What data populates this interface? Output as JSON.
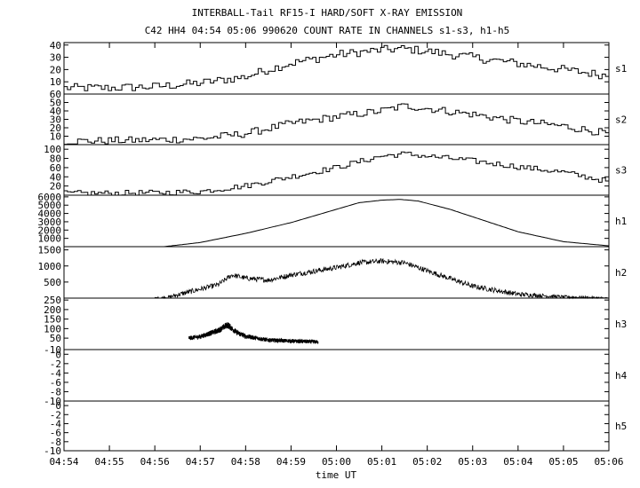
{
  "header": {
    "title": "INTERBALL-Tail RF15-I HARD/SOFT X-RAY EMISSION",
    "subtitle": "C42 HH4 04:54 05:06 990620  COUNT RATE IN CHANNELS s1-s3, h1-h5"
  },
  "chart_data": {
    "type": "line",
    "xlabel": "time UT",
    "x_ticks": [
      "04:54",
      "04:55",
      "04:56",
      "04:57",
      "04:58",
      "04:59",
      "05:00",
      "05:01",
      "05:02",
      "05:03",
      "05:04",
      "05:05",
      "05:06"
    ],
    "x_range_minutes": [
      0,
      12
    ],
    "x_start_time": "04:54",
    "panels": [
      {
        "name": "s1",
        "ylim": [
          0,
          42
        ],
        "yticks": [
          10,
          20,
          30,
          40
        ],
        "style": "step",
        "profile": [
          [
            0,
            5
          ],
          [
            1,
            5
          ],
          [
            2,
            6
          ],
          [
            3,
            9
          ],
          [
            4,
            14
          ],
          [
            4.5,
            20
          ],
          [
            5,
            25
          ],
          [
            6,
            32
          ],
          [
            7,
            36
          ],
          [
            7.5,
            37
          ],
          [
            8,
            35
          ],
          [
            9,
            30
          ],
          [
            10,
            25
          ],
          [
            11,
            20
          ],
          [
            12,
            15
          ]
        ],
        "noise": 3.5
      },
      {
        "name": "s2",
        "ylim": [
          0,
          60
        ],
        "yticks": [
          10,
          20,
          30,
          40,
          50,
          60
        ],
        "style": "step",
        "profile": [
          [
            0,
            4
          ],
          [
            1.5,
            5
          ],
          [
            3,
            7
          ],
          [
            3.5,
            10
          ],
          [
            4,
            13
          ],
          [
            5,
            25
          ],
          [
            6,
            33
          ],
          [
            7,
            40
          ],
          [
            7.5,
            46
          ],
          [
            8,
            43
          ],
          [
            9,
            36
          ],
          [
            10,
            28
          ],
          [
            11,
            22
          ],
          [
            12,
            13
          ]
        ],
        "noise": 4.5
      },
      {
        "name": "s3",
        "ylim": [
          0,
          110
        ],
        "yticks": [
          20,
          40,
          60,
          80,
          100
        ],
        "style": "step",
        "profile": [
          [
            0,
            4
          ],
          [
            2,
            5
          ],
          [
            3,
            8
          ],
          [
            4,
            20
          ],
          [
            5,
            40
          ],
          [
            6,
            60
          ],
          [
            7,
            85
          ],
          [
            7.5,
            90
          ],
          [
            8,
            85
          ],
          [
            9,
            75
          ],
          [
            10,
            62
          ],
          [
            11,
            50
          ],
          [
            12,
            30
          ]
        ],
        "noise": 6
      },
      {
        "name": "h1",
        "ylim": [
          0,
          6200
        ],
        "yticks": [
          1000,
          2000,
          3000,
          4000,
          5000,
          6000
        ],
        "style": "smooth",
        "profile": [
          [
            0,
            0
          ],
          [
            2.2,
            0
          ],
          [
            3,
            500
          ],
          [
            4,
            1600
          ],
          [
            5,
            2900
          ],
          [
            6,
            4500
          ],
          [
            6.5,
            5300
          ],
          [
            7,
            5600
          ],
          [
            7.4,
            5700
          ],
          [
            7.8,
            5500
          ],
          [
            8.5,
            4500
          ],
          [
            9,
            3600
          ],
          [
            10,
            1800
          ],
          [
            11,
            600
          ],
          [
            12,
            100
          ]
        ],
        "noise": 0
      },
      {
        "name": "h2",
        "ylim": [
          0,
          1600
        ],
        "yticks": [
          500,
          1000,
          1500
        ],
        "style": "noisy",
        "profile": [
          [
            0,
            0
          ],
          [
            2,
            0
          ],
          [
            2.3,
            30
          ],
          [
            3,
            280
          ],
          [
            3.4,
            420
          ],
          [
            3.7,
            720
          ],
          [
            4,
            620
          ],
          [
            4.5,
            560
          ],
          [
            5,
            720
          ],
          [
            6,
            950
          ],
          [
            6.5,
            1100
          ],
          [
            7,
            1150
          ],
          [
            7.5,
            1100
          ],
          [
            8,
            850
          ],
          [
            9,
            370
          ],
          [
            10,
            120
          ],
          [
            11,
            40
          ],
          [
            12,
            0
          ]
        ],
        "noise": 80
      },
      {
        "name": "h3",
        "ylim": [
          -10,
          260
        ],
        "yticks": [
          -10,
          50,
          100,
          150,
          200,
          250
        ],
        "style": "noisy",
        "x_extent": [
          2.75,
          5.6
        ],
        "profile": [
          [
            2.75,
            50
          ],
          [
            3,
            58
          ],
          [
            3.4,
            90
          ],
          [
            3.6,
            120
          ],
          [
            3.8,
            80
          ],
          [
            4,
            60
          ],
          [
            4.5,
            40
          ],
          [
            5,
            35
          ],
          [
            5.6,
            30
          ]
        ],
        "noise": 18
      },
      {
        "name": "h4",
        "ylim": [
          -10,
          1
        ],
        "yticks": [
          -10,
          -8,
          -6,
          -4,
          -2,
          0
        ],
        "style": "none",
        "profile": [],
        "noise": 0
      },
      {
        "name": "h5",
        "ylim": [
          -10,
          1
        ],
        "yticks": [
          -10,
          -8,
          -6,
          -4,
          -2,
          0
        ],
        "style": "none",
        "profile": [],
        "noise": 0
      }
    ]
  }
}
